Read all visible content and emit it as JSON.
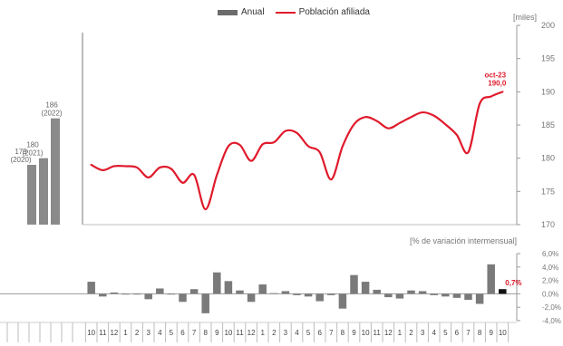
{
  "legend": {
    "annual": "Anual",
    "affiliated": "Población afiliada"
  },
  "top_unit": "[miles]",
  "bottom_unit": "[% de variación intermensual]",
  "highlight": {
    "label": "oct-23",
    "value": "190,0",
    "pct": "0,7%"
  },
  "colors": {
    "line": "#e01a2b",
    "bar": "#7a7a7a",
    "highlight": "#111111"
  },
  "chart_data": [
    {
      "type": "bar",
      "categories": [
        "2020",
        "2021",
        "2022"
      ],
      "values": [
        179,
        180,
        186
      ],
      "value_labels": [
        "179",
        "180",
        "186"
      ],
      "category_labels": [
        "(2020)",
        "(2021)",
        "(2022)"
      ]
    },
    {
      "type": "line",
      "ylim": [
        170,
        200
      ],
      "yticks": [
        170,
        175,
        180,
        185,
        190,
        195,
        200
      ],
      "x": [
        "10",
        "11",
        "12",
        "1",
        "2",
        "3",
        "4",
        "5",
        "6",
        "7",
        "8",
        "9",
        "10",
        "11",
        "12",
        "1",
        "2",
        "3",
        "4",
        "5",
        "6",
        "7",
        "8",
        "9",
        "10",
        "11",
        "12",
        "1",
        "2",
        "3",
        "4",
        "5",
        "6",
        "7",
        "8",
        "9",
        "10"
      ],
      "values": [
        179.0,
        178.2,
        178.8,
        178.8,
        178.6,
        177.1,
        178.6,
        178.4,
        176.3,
        177.5,
        172.3,
        177.5,
        181.8,
        182.0,
        179.6,
        182.1,
        182.4,
        184.1,
        183.8,
        181.8,
        180.9,
        176.8,
        181.8,
        185.1,
        186.2,
        185.6,
        184.5,
        185.3,
        186.2,
        186.9,
        186.4,
        185.1,
        183.5,
        180.9,
        188.2,
        189.3,
        190.0
      ]
    },
    {
      "type": "bar",
      "ylim": [
        -4,
        6
      ],
      "yticks": [
        "6,0%",
        "4,0%",
        "2,0%",
        "0,0%",
        "-2,0%",
        "-4,0%"
      ],
      "x": [
        "10",
        "11",
        "12",
        "1",
        "2",
        "3",
        "4",
        "5",
        "6",
        "7",
        "8",
        "9",
        "10",
        "11",
        "12",
        "1",
        "2",
        "3",
        "4",
        "5",
        "6",
        "7",
        "8",
        "9",
        "10",
        "11",
        "12",
        "1",
        "2",
        "3",
        "4",
        "5",
        "6",
        "7",
        "8",
        "9",
        "10"
      ],
      "values": [
        1.8,
        -0.4,
        0.2,
        0.0,
        -0.1,
        -0.8,
        0.8,
        -0.1,
        -1.2,
        0.7,
        -2.9,
        3.2,
        1.9,
        0.5,
        -1.2,
        1.4,
        0.1,
        0.4,
        -0.2,
        -0.4,
        -1.1,
        -0.2,
        -2.2,
        2.8,
        1.8,
        0.6,
        -0.5,
        -0.7,
        0.5,
        0.4,
        -0.2,
        -0.4,
        -0.6,
        -0.9,
        -1.5,
        4.4,
        0.7
      ]
    }
  ]
}
